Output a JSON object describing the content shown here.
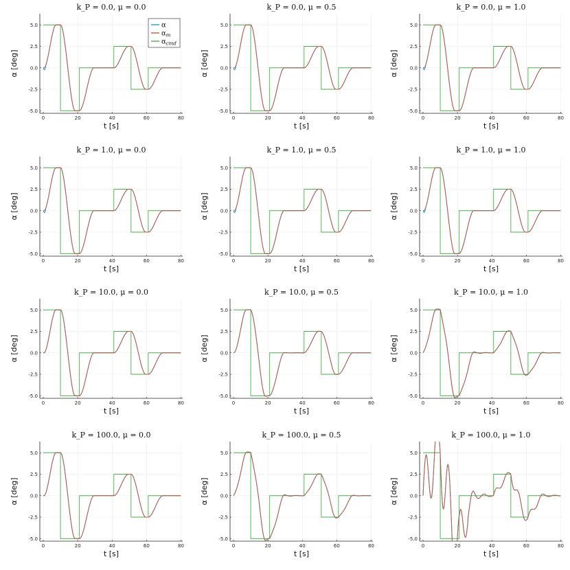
{
  "figure": {
    "layout": {
      "rows": 4,
      "cols": 3
    },
    "shared_axes": {
      "xlabel": "t [s]",
      "ylabel": "α [deg]",
      "xlim": [
        -2,
        81
      ],
      "ylim": [
        -5.3,
        6.3
      ],
      "xticks": [
        0,
        20,
        40,
        60,
        80
      ],
      "yticks": [
        -5.0,
        -2.5,
        0.0,
        2.5,
        5.0
      ],
      "ytick_labels": [
        "-5.0",
        "-2.5",
        "0.0",
        "2.5",
        "5.0"
      ],
      "grid": true
    },
    "legend": {
      "placement": "top-right",
      "entries": [
        {
          "label": "α",
          "sub": "",
          "color": "#1f9bd6"
        },
        {
          "label": "α",
          "sub": "m",
          "color": "#c8553d"
        },
        {
          "label": "α",
          "sub": "cmd",
          "color": "#4caa4a"
        }
      ]
    },
    "colors": {
      "alpha": "#1f9bd6",
      "alpha_m": "#c8553d",
      "alpha_cmd": "#4caa4a",
      "grid": "#ececec",
      "axis": "#222222"
    }
  },
  "chart_data": {
    "type": "line",
    "panels": [
      {
        "title": "k_P = 0.0, μ = 0.0",
        "kp": 0.0,
        "mu": 0.0
      },
      {
        "title": "k_P = 0.0, μ = 0.5",
        "kp": 0.0,
        "mu": 0.5
      },
      {
        "title": "k_P = 0.0, μ = 1.0",
        "kp": 0.0,
        "mu": 1.0
      },
      {
        "title": "k_P = 1.0, μ = 0.0",
        "kp": 1.0,
        "mu": 0.0
      },
      {
        "title": "k_P = 1.0, μ = 0.5",
        "kp": 1.0,
        "mu": 0.5
      },
      {
        "title": "k_P = 1.0, μ = 1.0",
        "kp": 1.0,
        "mu": 1.0
      },
      {
        "title": "k_P = 10.0, μ = 0.0",
        "kp": 10.0,
        "mu": 0.0
      },
      {
        "title": "k_P = 10.0, μ = 0.5",
        "kp": 10.0,
        "mu": 0.5
      },
      {
        "title": "k_P = 10.0, μ = 1.0",
        "kp": 10.0,
        "mu": 1.0
      },
      {
        "title": "k_P = 100.0, μ = 0.0",
        "kp": 100.0,
        "mu": 0.0
      },
      {
        "title": "k_P = 100.0, μ = 0.5",
        "kp": 100.0,
        "mu": 0.5
      },
      {
        "title": "k_P = 100.0, μ = 1.0",
        "kp": 100.0,
        "mu": 1.0
      }
    ],
    "command": {
      "x": [
        0,
        10,
        10,
        21,
        21,
        41,
        41,
        51,
        51,
        61,
        61,
        80
      ],
      "y": [
        5,
        5,
        -5,
        -5,
        0,
        0,
        2.5,
        2.5,
        -2.5,
        -2.5,
        0,
        0
      ]
    },
    "response_segments": [
      {
        "start": 0,
        "end": 10,
        "from": 0,
        "to": 5
      },
      {
        "start": 10,
        "end": 21,
        "from": 5,
        "to": -5
      },
      {
        "start": 21,
        "end": 41,
        "from": -5,
        "to": 0
      },
      {
        "start": 41,
        "end": 51,
        "from": 0,
        "to": 2.5
      },
      {
        "start": 51,
        "end": 61,
        "from": 2.5,
        "to": -2.5
      },
      {
        "start": 61,
        "end": 80,
        "from": -2.5,
        "to": 0
      }
    ]
  }
}
